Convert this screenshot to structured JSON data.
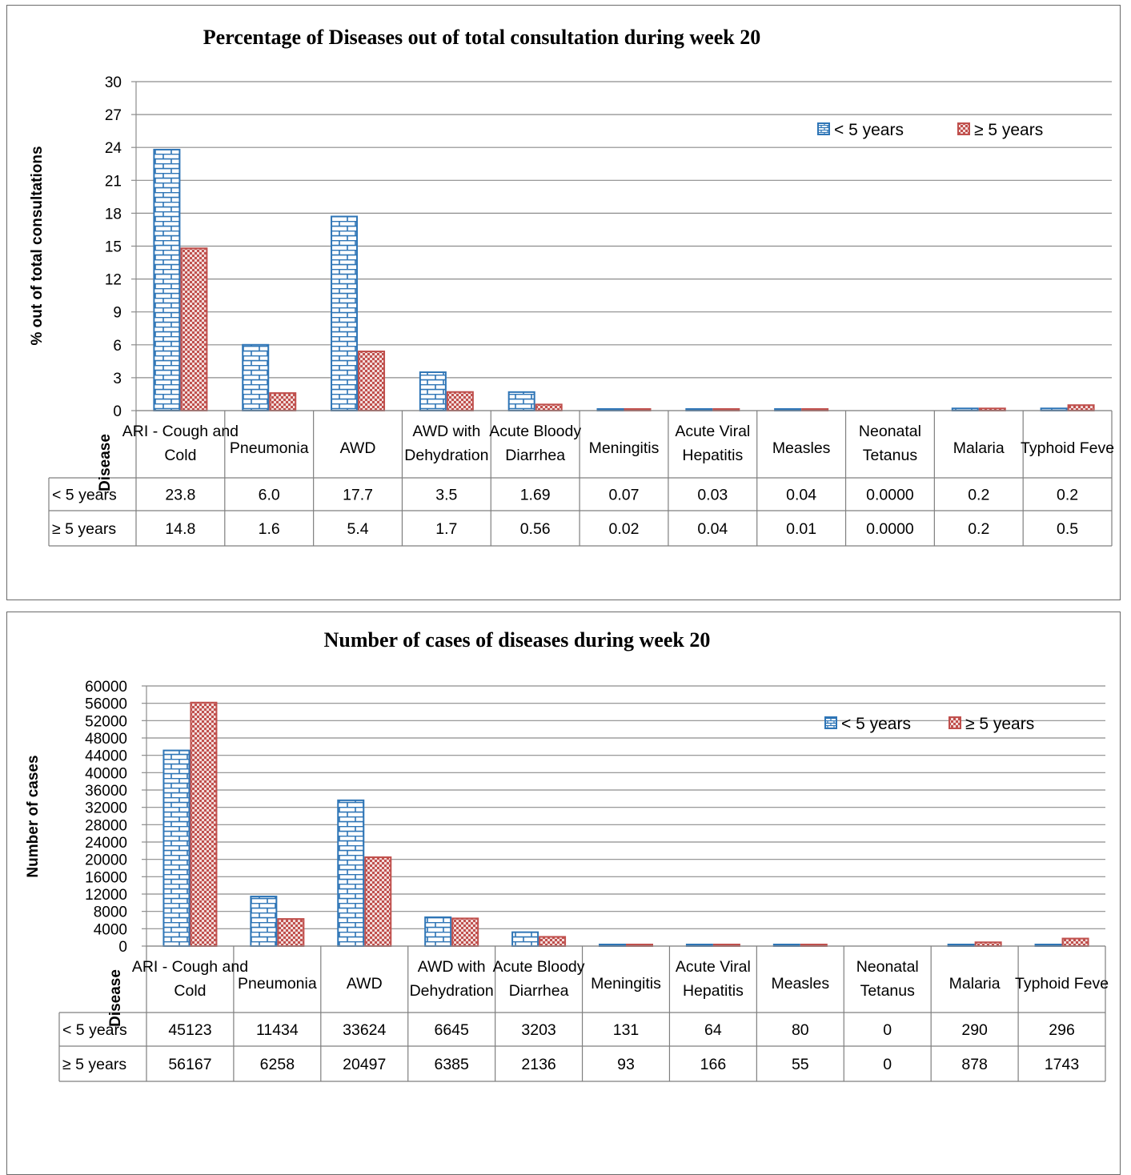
{
  "chart_data": [
    {
      "type": "bar",
      "title": "Percentage of Diseases out of total consultation during week 20",
      "ylabel": "% out of total consultations",
      "xlabel": "Disease",
      "ylim": [
        0,
        30
      ],
      "yticks": [
        "0",
        "3",
        "6",
        "9",
        "12",
        "15",
        "18",
        "21",
        "24",
        "27",
        "30"
      ],
      "grid": true,
      "legend_position": "top-right",
      "categories": [
        [
          "ARI - Cough and",
          "Cold"
        ],
        [
          "Pneumonia"
        ],
        [
          "AWD"
        ],
        [
          "AWD with",
          "Dehydration"
        ],
        [
          "Acute Bloody",
          "Diarrhea"
        ],
        [
          "Meningitis"
        ],
        [
          "Acute Viral",
          "Hepatitis"
        ],
        [
          "Measles"
        ],
        [
          "Neonatal",
          "Tetanus"
        ],
        [
          "Malaria"
        ],
        [
          "Typhoid Feve"
        ]
      ],
      "series": [
        {
          "name": "< 5 years",
          "color": "#2e75b6",
          "values": [
            23.8,
            6.0,
            17.7,
            3.5,
            1.69,
            0.07,
            0.03,
            0.04,
            0.0,
            0.2,
            0.2
          ],
          "table_labels": [
            "23.8",
            "6.0",
            "17.7",
            "3.5",
            "1.69",
            "0.07",
            "0.03",
            "0.04",
            "0.0000",
            "0.2",
            "0.2"
          ]
        },
        {
          "name": "≥ 5 years",
          "color": "#c0504d",
          "values": [
            14.8,
            1.6,
            5.4,
            1.7,
            0.56,
            0.02,
            0.04,
            0.01,
            0.0,
            0.2,
            0.5
          ],
          "table_labels": [
            "14.8",
            "1.6",
            "5.4",
            "1.7",
            "0.56",
            "0.02",
            "0.04",
            "0.01",
            "0.0000",
            "0.2",
            "0.5"
          ]
        }
      ]
    },
    {
      "type": "bar",
      "title": "Number of cases of diseases during week 20",
      "ylabel": "Number of cases",
      "xlabel": "Disease",
      "ylim": [
        0,
        60000
      ],
      "yticks": [
        "0",
        "4000",
        "8000",
        "12000",
        "16000",
        "20000",
        "24000",
        "28000",
        "32000",
        "36000",
        "40000",
        "44000",
        "48000",
        "52000",
        "56000",
        "60000"
      ],
      "grid": true,
      "legend_position": "top-right",
      "categories": [
        [
          "ARI - Cough and",
          "Cold"
        ],
        [
          "Pneumonia"
        ],
        [
          "AWD"
        ],
        [
          "AWD with",
          "Dehydration"
        ],
        [
          "Acute Bloody",
          "Diarrhea"
        ],
        [
          "Meningitis"
        ],
        [
          "Acute Viral",
          "Hepatitis"
        ],
        [
          "Measles"
        ],
        [
          "Neonatal",
          "Tetanus"
        ],
        [
          "Malaria"
        ],
        [
          "Typhoid Feve"
        ]
      ],
      "series": [
        {
          "name": "< 5 years",
          "color": "#2e75b6",
          "values": [
            45123,
            11434,
            33624,
            6645,
            3203,
            131,
            64,
            80,
            0,
            290,
            296
          ],
          "table_labels": [
            "45123",
            "11434",
            "33624",
            "6645",
            "3203",
            "131",
            "64",
            "80",
            "0",
            "290",
            "296"
          ]
        },
        {
          "name": "≥ 5 years",
          "color": "#c0504d",
          "values": [
            56167,
            6258,
            20497,
            6385,
            2136,
            93,
            166,
            55,
            0,
            878,
            1743
          ],
          "table_labels": [
            "56167",
            "6258",
            "20497",
            "6385",
            "2136",
            "93",
            "166",
            "55",
            "0",
            "878",
            "1743"
          ]
        }
      ]
    }
  ]
}
